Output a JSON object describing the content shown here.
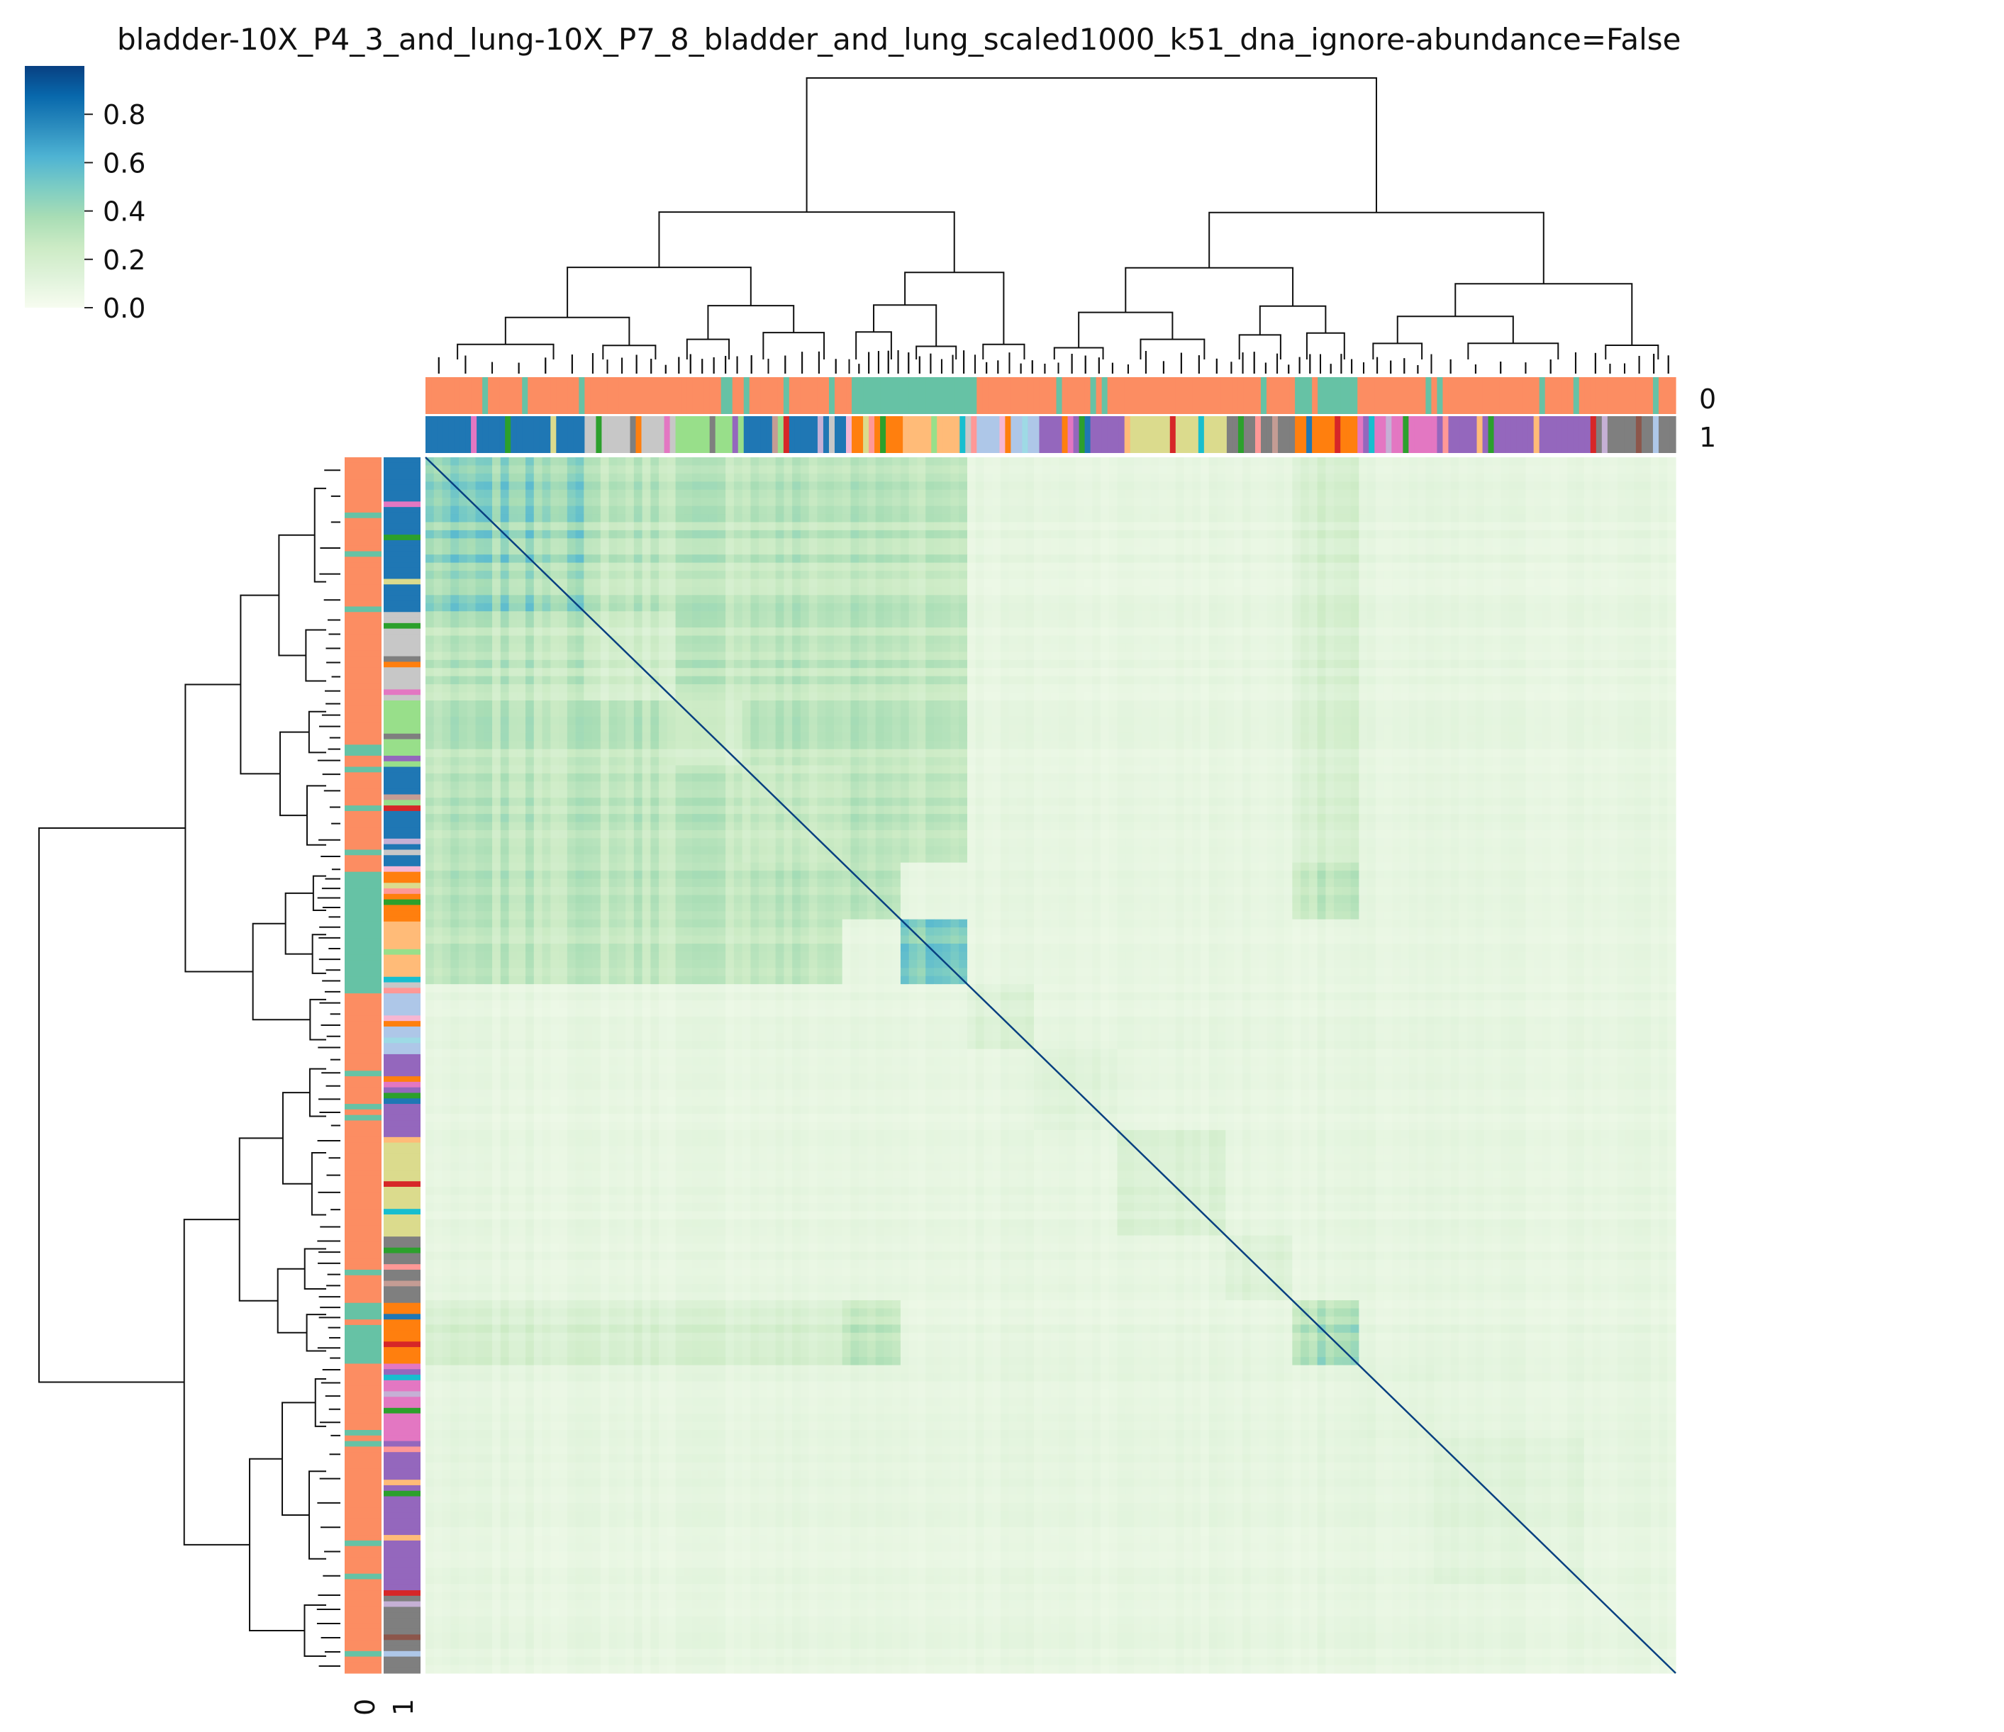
{
  "chart_data": {
    "type": "heatmap",
    "subtype": "clustermap",
    "title": "bladder-10X_P4_3_and_lung-10X_P7_8_bladder_and_lung_scaled1000_k51_dna_ignore-abundance=False",
    "xlabel": "",
    "ylabel": "",
    "colorbar": {
      "colormap": "GnBu",
      "range": [
        0.0,
        1.0
      ],
      "ticks": [
        0.0,
        0.2,
        0.4,
        0.6,
        0.8
      ],
      "tick_labels": [
        "0.0",
        "0.2",
        "0.4",
        "0.6",
        "0.8"
      ],
      "placement": "top-left",
      "colors": [
        "#f7fcf0",
        "#e0f3db",
        "#ccebc5",
        "#a8ddb5",
        "#7bccc4",
        "#4eb3d3",
        "#2b8cbe",
        "#0868ac",
        "#084081"
      ]
    },
    "diagonal_value": 1.0,
    "annotation_tracks": {
      "labels": [
        "0",
        "1"
      ],
      "track0_colors": {
        "bladder_group": "#fc8d62",
        "lung_group": "#66c2a5",
        "other": "#8da0cb"
      },
      "track1_palette": [
        "#1f77b4",
        "#aec7e8",
        "#ff7f0e",
        "#ffbb78",
        "#2ca02c",
        "#98df8a",
        "#d62728",
        "#ff9896",
        "#9467bd",
        "#c5b0d5",
        "#8c564b",
        "#c49c94",
        "#e377c2",
        "#f7b6d2",
        "#7f7f7f",
        "#c7c7c7",
        "#bcbd22",
        "#dbdb8d",
        "#17becf",
        "#9edae5"
      ]
    },
    "dendrogram_top_level": {
      "n_leaves": 2,
      "left_cluster_fraction": 0.44,
      "sub_split_left_fraction": 0.3,
      "sub_split_right_fraction": 0.55
    },
    "clusters": [
      {
        "start": 0.0,
        "end": 0.128,
        "intensity": 0.42,
        "track0": "bladder_group",
        "track1": "#1f77b4"
      },
      {
        "start": 0.128,
        "end": 0.198,
        "intensity": 0.22,
        "track0": "bladder_group",
        "track1": "#c7c7c7"
      },
      {
        "start": 0.198,
        "end": 0.254,
        "intensity": 0.2,
        "track0": "bladder_group",
        "track1": "#98df8a"
      },
      {
        "start": 0.254,
        "end": 0.335,
        "intensity": 0.26,
        "track0": "bladder_group",
        "track1": "#1f77b4"
      },
      {
        "start": 0.335,
        "end": 0.382,
        "intensity": 0.3,
        "track0": "lung_group",
        "track1": "#ff7f0e"
      },
      {
        "start": 0.382,
        "end": 0.435,
        "intensity": 0.55,
        "track0": "lung_group",
        "track1": "#ffbb78"
      },
      {
        "start": 0.435,
        "end": 0.49,
        "intensity": 0.15,
        "track0": "bladder_group",
        "track1": "#aec7e8"
      },
      {
        "start": 0.49,
        "end": 0.555,
        "intensity": 0.14,
        "track0": "bladder_group",
        "track1": "#9467bd"
      },
      {
        "start": 0.555,
        "end": 0.64,
        "intensity": 0.16,
        "track0": "bladder_group",
        "track1": "#dbdb8d"
      },
      {
        "start": 0.64,
        "end": 0.695,
        "intensity": 0.15,
        "track0": "bladder_group",
        "track1": "#7f7f7f"
      },
      {
        "start": 0.695,
        "end": 0.745,
        "intensity": 0.35,
        "track0": "lung_group",
        "track1": "#ff7f0e"
      },
      {
        "start": 0.745,
        "end": 0.81,
        "intensity": 0.1,
        "track0": "bladder_group",
        "track1": "#e377c2"
      },
      {
        "start": 0.81,
        "end": 0.93,
        "intensity": 0.12,
        "track0": "bladder_group",
        "track1": "#9467bd"
      },
      {
        "start": 0.93,
        "end": 1.0,
        "intensity": 0.09,
        "track0": "bladder_group",
        "track1": "#7f7f7f"
      }
    ],
    "cross_blocks": [
      {
        "rows": [
          0,
          3
        ],
        "cols": [
          0,
          3
        ],
        "value": 0.3
      },
      {
        "rows": [
          0,
          3
        ],
        "cols": [
          4,
          5
        ],
        "value": 0.3
      },
      {
        "rows": [
          4,
          5
        ],
        "cols": [
          0,
          3
        ],
        "value": 0.3
      },
      {
        "rows": [
          4,
          4
        ],
        "cols": [
          10,
          10
        ],
        "value": 0.28
      },
      {
        "rows": [
          10,
          10
        ],
        "cols": [
          4,
          4
        ],
        "value": 0.28
      },
      {
        "rows": [
          10,
          10
        ],
        "cols": [
          0,
          3
        ],
        "value": 0.18
      },
      {
        "rows": [
          0,
          3
        ],
        "cols": [
          10,
          10
        ],
        "value": 0.18
      }
    ],
    "grid": false,
    "legend": "colorbar"
  }
}
